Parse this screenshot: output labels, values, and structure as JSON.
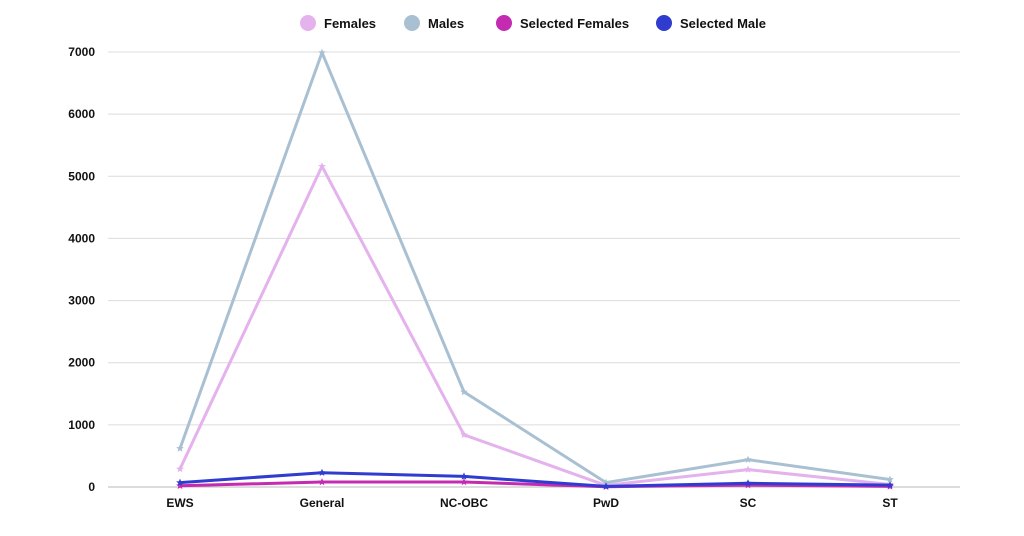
{
  "chart_data": {
    "type": "line",
    "categories": [
      "EWS",
      "General",
      "NC-OBC",
      "PwD",
      "SC",
      "ST"
    ],
    "series": [
      {
        "name": "Females",
        "color": "#e4b2ec",
        "values": [
          290,
          5160,
          840,
          25,
          280,
          40
        ]
      },
      {
        "name": "Males",
        "color": "#a9c0d3",
        "values": [
          620,
          6990,
          1530,
          70,
          440,
          120
        ]
      },
      {
        "name": "Selected Females",
        "color": "#c42bb0",
        "values": [
          20,
          80,
          80,
          5,
          30,
          10
        ]
      },
      {
        "name": "Selected Male",
        "color": "#2f3ccf",
        "values": [
          70,
          230,
          170,
          10,
          60,
          30
        ]
      }
    ],
    "yticks": [
      "0",
      "1000",
      "2000",
      "3000",
      "4000",
      "5000",
      "6000",
      "7000"
    ],
    "ylim": [
      0,
      7000
    ],
    "grid": true,
    "legend_position": "top"
  }
}
